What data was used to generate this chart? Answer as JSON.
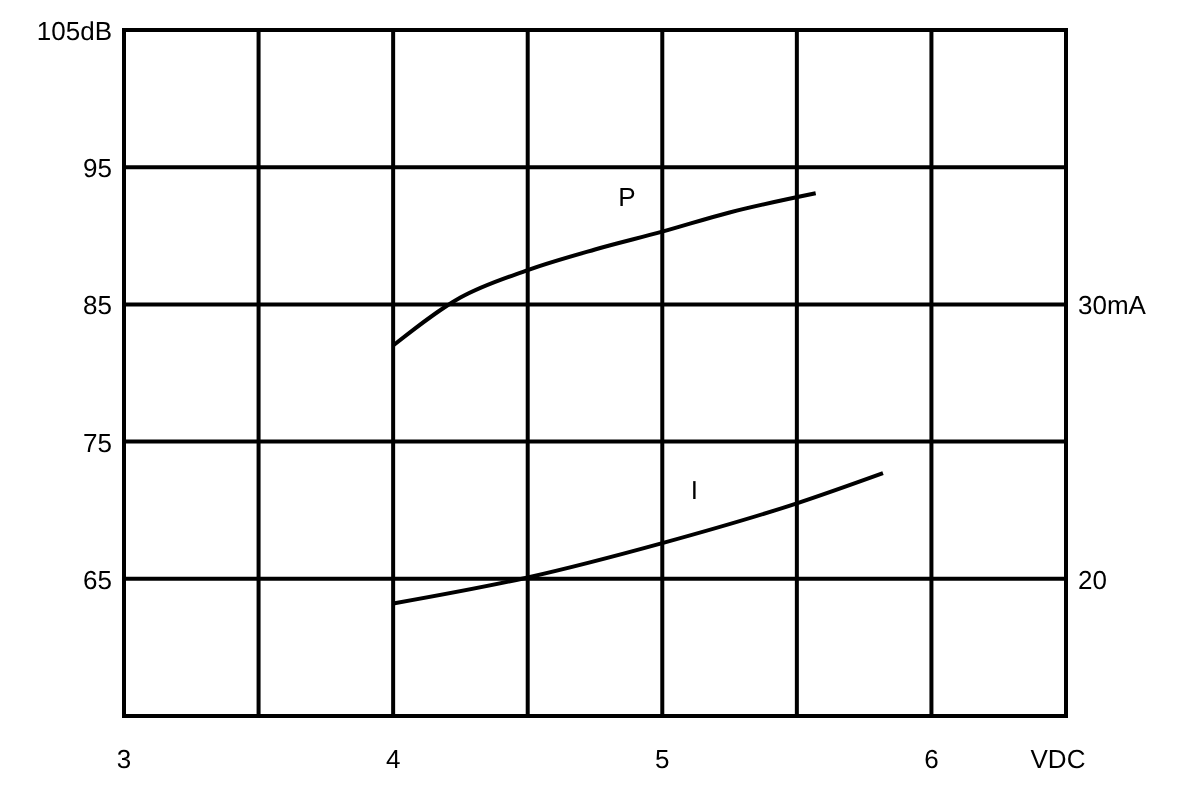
{
  "chart_data": {
    "type": "line",
    "xlabel": "VDC",
    "xlim": [
      3,
      6.5
    ],
    "xticks": [
      3,
      {
        "value": 3.5,
        "label": null
      },
      4,
      {
        "value": 4.5,
        "label": null
      },
      5,
      {
        "value": 5.5,
        "label": null
      },
      6,
      {
        "value": 6.5,
        "label": null
      }
    ],
    "ylim": [
      55,
      105
    ],
    "yticks": [
      {
        "value": 55,
        "label": null
      },
      65,
      75,
      85,
      95,
      {
        "value": 105,
        "label": "105dB"
      }
    ],
    "y2lim": [
      15,
      40
    ],
    "y2ticks": [
      20,
      {
        "value": 30,
        "label": "30mA"
      }
    ],
    "grid": true,
    "series": [
      {
        "name": "P",
        "color": "#000000",
        "x": [
          4,
          4.25,
          4.5,
          4.75,
          5,
          5.25,
          5.57
        ],
        "values": [
          82,
          85.5,
          87.5,
          89,
          90.3,
          91.7,
          93.1
        ]
      },
      {
        "name": "I",
        "color": "#000000",
        "axis": "y2",
        "x": [
          4,
          4.5,
          5,
          5.5,
          5.82
        ],
        "values": [
          19.1,
          20.05,
          21.3,
          22.75,
          23.85
        ]
      }
    ]
  }
}
